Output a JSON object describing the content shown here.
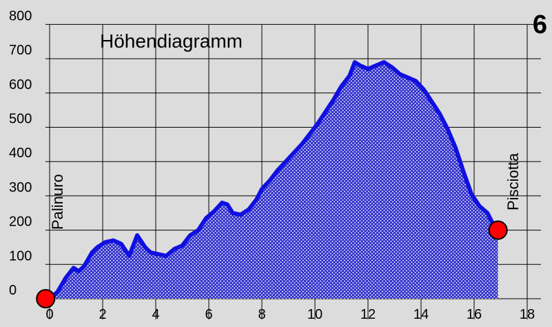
{
  "chart_data": {
    "type": "area",
    "title": "Höhendiagramm",
    "panel_number": "6",
    "x_ticks": [
      "0",
      "2",
      "4",
      "6",
      "8",
      "10",
      "12",
      "14",
      "16",
      "18"
    ],
    "y_ticks": [
      "0",
      "100",
      "200",
      "300",
      "400",
      "500",
      "600",
      "700",
      "800"
    ],
    "xlim": [
      0,
      18
    ],
    "ylim": [
      0,
      800
    ],
    "grid": true,
    "colors": {
      "line": "#1010e0",
      "fill": "#2a2acc",
      "marker": "#ff0000",
      "background": "#dcdcdc"
    },
    "start_label": "Palinuro",
    "end_label": "Pisciotta",
    "markers": [
      {
        "x": -0.15,
        "y": 0
      },
      {
        "x": 16.9,
        "y": 200
      }
    ],
    "x": [
      0,
      0.3,
      0.6,
      0.9,
      1.1,
      1.3,
      1.6,
      1.8,
      2.1,
      2.4,
      2.7,
      3.0,
      3.3,
      3.6,
      3.8,
      4.1,
      4.4,
      4.7,
      5.0,
      5.3,
      5.6,
      5.9,
      6.2,
      6.5,
      6.7,
      6.9,
      7.2,
      7.5,
      7.8,
      8.0,
      8.3,
      8.6,
      8.9,
      9.2,
      9.5,
      9.8,
      10.1,
      10.4,
      10.7,
      11.0,
      11.3,
      11.5,
      11.7,
      12.0,
      12.3,
      12.6,
      12.9,
      13.2,
      13.5,
      13.8,
      14.1,
      14.4,
      14.7,
      15.0,
      15.3,
      15.6,
      15.9,
      16.2,
      16.5,
      16.7,
      16.9
    ],
    "y": [
      0,
      20,
      60,
      90,
      80,
      95,
      135,
      150,
      165,
      170,
      160,
      125,
      185,
      150,
      135,
      130,
      125,
      145,
      155,
      185,
      200,
      235,
      255,
      280,
      275,
      250,
      245,
      260,
      290,
      320,
      345,
      375,
      400,
      425,
      450,
      480,
      510,
      545,
      580,
      620,
      650,
      690,
      680,
      670,
      680,
      690,
      675,
      655,
      645,
      635,
      610,
      575,
      540,
      495,
      440,
      370,
      305,
      270,
      250,
      220,
      200
    ]
  }
}
